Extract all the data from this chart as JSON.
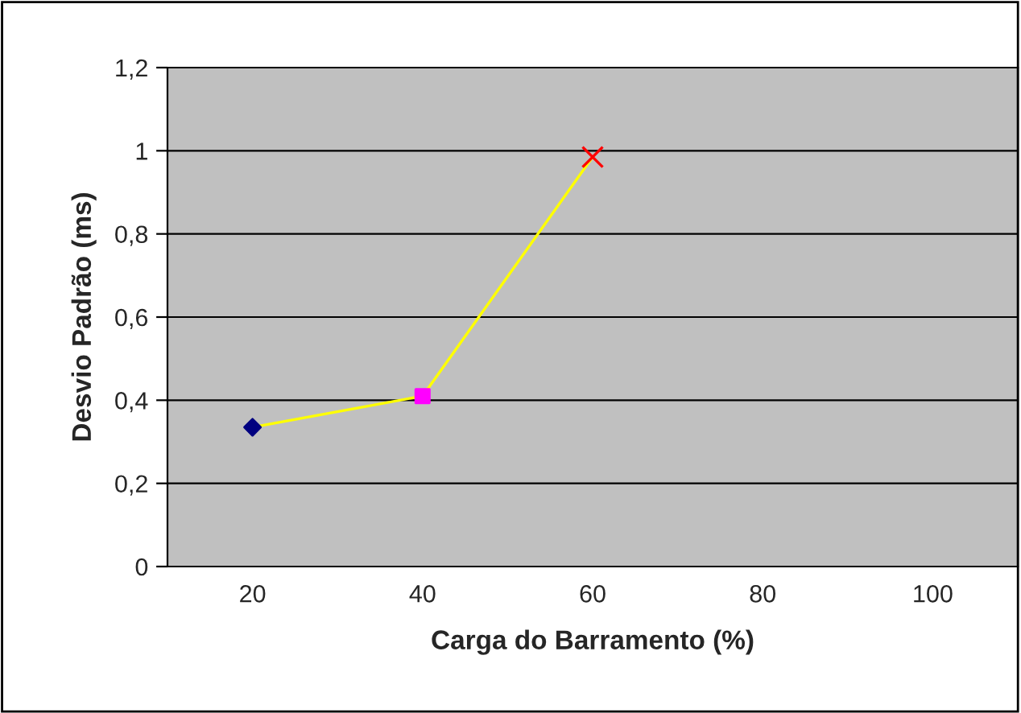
{
  "chart_data": {
    "type": "line",
    "xlabel": "Carga do Barramento (%)",
    "ylabel": "Desvio Padrão (ms)",
    "categories": [
      "20",
      "40",
      "60",
      "80",
      "100"
    ],
    "series": [
      {
        "color": "#ffff00",
        "marker": "none",
        "values": [
          0.335,
          0.41,
          0.985,
          null,
          null
        ]
      },
      {
        "type": "scatter",
        "color": "#000080",
        "marker": "diamond",
        "values": [
          0.335,
          null,
          null,
          null,
          null
        ]
      },
      {
        "type": "scatter",
        "color": "#ff00ff",
        "marker": "square",
        "values": [
          null,
          0.41,
          null,
          null,
          null
        ]
      },
      {
        "type": "scatter",
        "color": "#ff0000",
        "marker": "cross",
        "values": [
          null,
          null,
          0.985,
          null,
          null
        ]
      }
    ],
    "ylim": [
      0,
      1.2
    ],
    "yticks": [
      0,
      {
        "value": 0.2,
        "label": "0,2"
      },
      {
        "value": 0.4,
        "label": "0,4"
      },
      {
        "value": 0.6,
        "label": "0,6"
      },
      {
        "value": 0.8,
        "label": "0,8"
      },
      1,
      {
        "value": 1.2,
        "label": "1,2"
      }
    ],
    "grid": "y",
    "legend": false
  }
}
